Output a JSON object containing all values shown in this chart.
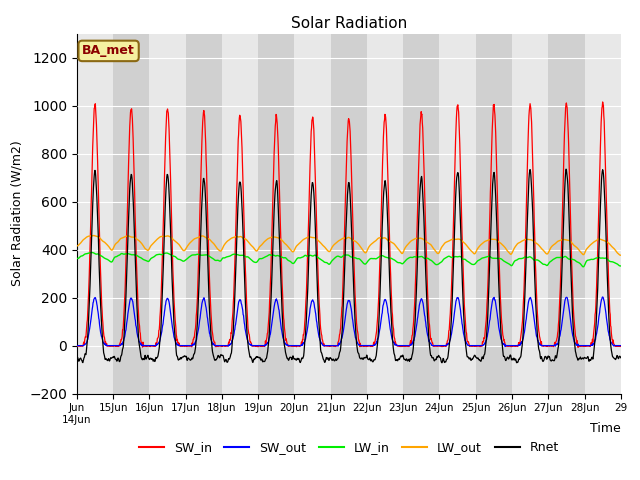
{
  "title": "Solar Radiation",
  "xlabel": "Time",
  "ylabel": "Solar Radiation (W/m2)",
  "ylim": [
    -200,
    1300
  ],
  "yticks": [
    -200,
    0,
    200,
    400,
    600,
    800,
    1000,
    1200
  ],
  "site_label": "BA_met",
  "legend": [
    "SW_in",
    "SW_out",
    "LW_in",
    "LW_out",
    "Rnet"
  ],
  "colors": {
    "SW_in": "red",
    "SW_out": "blue",
    "LW_in": "#00ee00",
    "LW_out": "orange",
    "Rnet": "black"
  },
  "background_color": "#e8e8e8",
  "band_color": "#d0d0d0",
  "n_days": 15,
  "start_day": 14,
  "dt_hours": 0.25
}
